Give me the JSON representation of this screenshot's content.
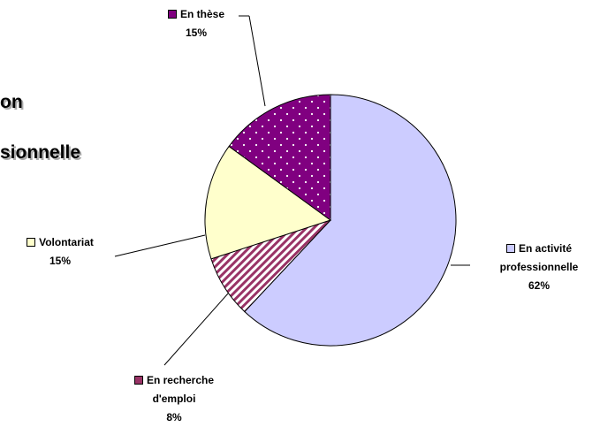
{
  "chart_data": {
    "type": "pie",
    "title_lines": [
      "on",
      "sionnelle"
    ],
    "categories": [
      "En activité professionnelle",
      "En recherche d'emploi",
      "Volontariat",
      "En thèse"
    ],
    "values": [
      62,
      8,
      15,
      15
    ],
    "value_labels": [
      "62%",
      "8%",
      "15%",
      "15%"
    ],
    "colors": [
      "#ccccff",
      "#993366",
      "#ffffcc",
      "#800080"
    ]
  }
}
